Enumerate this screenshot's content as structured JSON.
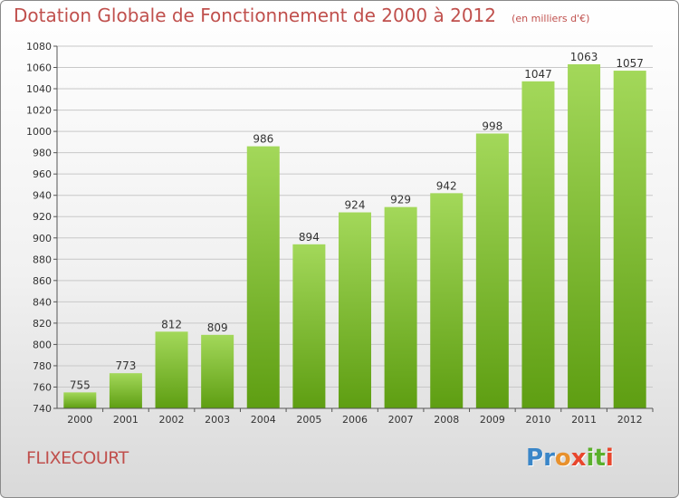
{
  "header": {
    "title": "Dotation Globale de Fonctionnement de 2000 à 2012",
    "subtitle": "(en milliers d'€)"
  },
  "footer": {
    "commune": "FLIXECOURT",
    "logo_text": "Proxiti"
  },
  "colors": {
    "title": "#c0504d",
    "bar_light": "#a3d85a",
    "bar_dark": "#5e9e12",
    "logo": [
      "#3a86c8",
      "#3a86c8",
      "#e8912d",
      "#e8462d",
      "#5ab02c",
      "#5ab02c",
      "#e8462d"
    ]
  },
  "chart_data": {
    "type": "bar",
    "title": "Dotation Globale de Fonctionnement de 2000 à 2012",
    "subtitle": "(en milliers d'€)",
    "categories": [
      "2000",
      "2001",
      "2002",
      "2003",
      "2004",
      "2005",
      "2006",
      "2007",
      "2008",
      "2009",
      "2010",
      "2011",
      "2012"
    ],
    "values": [
      755,
      773,
      812,
      809,
      986,
      894,
      924,
      929,
      942,
      998,
      1047,
      1063,
      1057
    ],
    "ylim": [
      740,
      1080
    ],
    "yticks": [
      740,
      760,
      780,
      800,
      820,
      840,
      860,
      880,
      900,
      920,
      940,
      960,
      980,
      1000,
      1020,
      1040,
      1060,
      1080
    ],
    "grid": true,
    "data_labels": true
  }
}
